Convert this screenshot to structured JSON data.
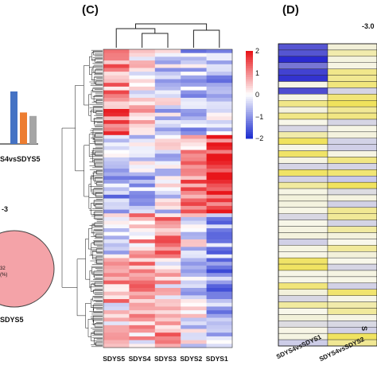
{
  "panels": {
    "c_label": "(C)",
    "d_label": "(D)",
    "b_frag_x_label": "S4vsSDYS5",
    "b_frag_small_text": "-3",
    "b_frag_bottom_label": "SDYS5",
    "d_frag_scale_label": "-3.0",
    "d_frag_right_label": "S"
  },
  "left_fragment": {
    "venn_text_line1": "32",
    "venn_text_line2": "(%)",
    "bars": [
      {
        "color": "#4472c4",
        "value": 3.0
      },
      {
        "color": "#ed7d31",
        "value": 1.8
      },
      {
        "color": "#a5a5a5",
        "value": 1.6
      }
    ],
    "venn_color": "#f4a3a8"
  },
  "chart_data": [
    {
      "type": "heatmap",
      "title": "",
      "columns": [
        "SDYS5",
        "SDYS4",
        "SDYS3",
        "SDYS2",
        "SDYS1"
      ],
      "color_scale": {
        "min": -2,
        "max": 2,
        "low_color": "#1f2fd0",
        "mid_color": "#ffffff",
        "high_color": "#e8161b"
      },
      "legend_ticks": [
        "2",
        "1",
        "0",
        "−1",
        "−2"
      ],
      "row_dendrogram": true,
      "column_dendrogram": true,
      "rows_shown": 80
    },
    {
      "type": "heatmap",
      "title": "",
      "columns": [
        "SDYS4vsSDYS1",
        "SDYS4vsSDYS2"
      ],
      "color_scale": {
        "low_color": "#2a2ad0",
        "mid_color": "#f2f0d8",
        "high_color": "#f0e04a"
      },
      "scale_label": "-3.0",
      "rows_shown": 48
    }
  ]
}
